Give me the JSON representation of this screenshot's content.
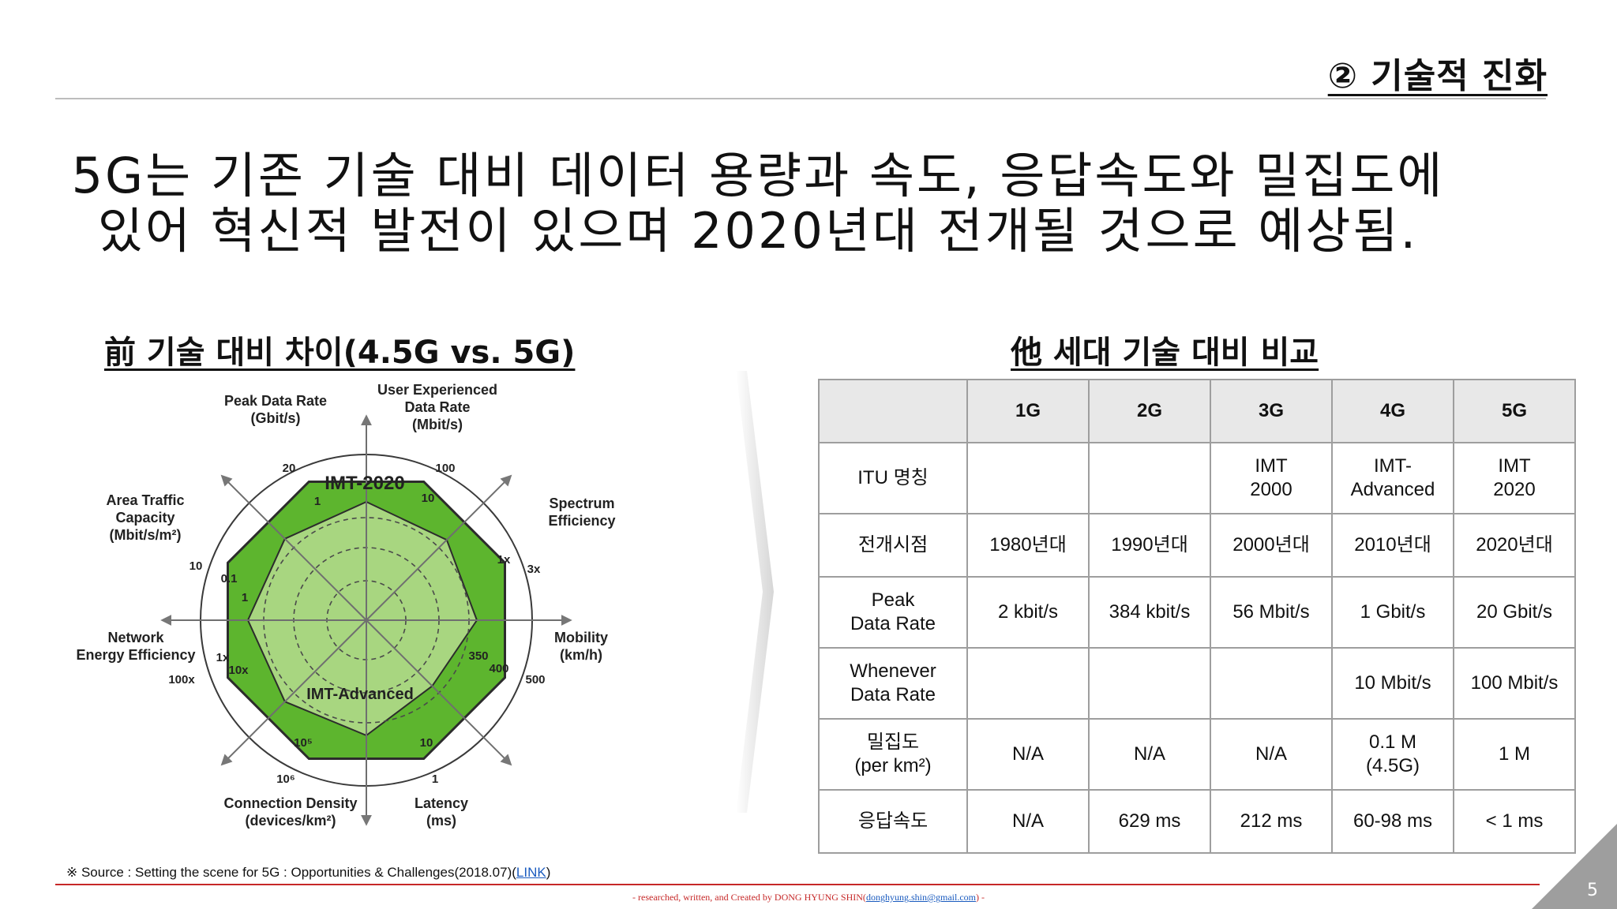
{
  "section_title": "② 기술적 진화",
  "headline": {
    "line1": "5G는 기존 기술 대비 데이터 용량과 속도, 응답속도와 밀집도에",
    "line2": "있어 혁신적 발전이 있으며 2020년대 전개될 것으로 예상됨."
  },
  "left_subtitle": "前 기술 대비 차이(4.5G vs. 5G)",
  "right_subtitle": "他 세대 기술 대비 비교",
  "radar": {
    "outer_label": "IMT-2020",
    "inner_label": "IMT-Advanced",
    "axes": [
      {
        "label_lines": [
          "Peak Data Rate",
          "(Gbit/s)"
        ],
        "outer_tick": "20",
        "inner_tick": "1"
      },
      {
        "label_lines": [
          "User Experienced",
          "Data Rate",
          "(Mbit/s)"
        ],
        "outer_tick": "100",
        "inner_tick": "10"
      },
      {
        "label_lines": [
          "Spectrum",
          "Efficiency"
        ],
        "outer_tick": "3x",
        "inner_tick": "1x"
      },
      {
        "label_lines": [
          "Mobility",
          "(km/h)"
        ],
        "outer_tick": "500",
        "inner_tick": "400",
        "extra_tick": "350"
      },
      {
        "label_lines": [
          "Latency",
          "(ms)"
        ],
        "outer_tick": "1",
        "inner_tick": "10"
      },
      {
        "label_lines": [
          "Connection Density",
          "(devices/km²)"
        ],
        "outer_tick": "10⁶",
        "inner_tick": "10⁵"
      },
      {
        "label_lines": [
          "Network",
          "Energy Efficiency"
        ],
        "outer_tick": "100x",
        "inner_tick": "1x",
        "extra_tick": "10x"
      },
      {
        "label_lines": [
          "Area Traffic",
          "Capacity",
          "(Mbit/s/m²)"
        ],
        "outer_tick": "10",
        "inner_tick": "0.1",
        "extra_tick": "1"
      }
    ],
    "colors": {
      "outer_fill": "#5db52e",
      "inner_fill": "#a8d680",
      "stroke": "#2c2c2c"
    }
  },
  "table": {
    "headers": [
      "",
      "1G",
      "2G",
      "3G",
      "4G",
      "5G"
    ],
    "rows": [
      {
        "label": [
          "ITU 명칭"
        ],
        "cells": [
          [
            ""
          ],
          [
            ""
          ],
          [
            "IMT",
            "2000"
          ],
          [
            "IMT-",
            "Advanced"
          ],
          [
            "IMT",
            "2020"
          ]
        ]
      },
      {
        "label": [
          "전개시점"
        ],
        "cells": [
          [
            "1980년대"
          ],
          [
            "1990년대"
          ],
          [
            "2000년대"
          ],
          [
            "2010년대"
          ],
          [
            "2020년대"
          ]
        ]
      },
      {
        "label": [
          "Peak",
          "Data Rate"
        ],
        "cells": [
          [
            "2 kbit/s"
          ],
          [
            "384 kbit/s"
          ],
          [
            "56 Mbit/s"
          ],
          [
            "1 Gbit/s"
          ],
          [
            "20 Gbit/s"
          ]
        ]
      },
      {
        "label": [
          "Whenever",
          "Data Rate"
        ],
        "cells": [
          [
            ""
          ],
          [
            ""
          ],
          [
            ""
          ],
          [
            "10 Mbit/s"
          ],
          [
            "100 Mbit/s"
          ]
        ]
      },
      {
        "label": [
          "밀집도",
          "(per km²)"
        ],
        "cells": [
          [
            "N/A"
          ],
          [
            "N/A"
          ],
          [
            "N/A"
          ],
          [
            "0.1 M",
            "(4.5G)"
          ],
          [
            "1 M"
          ]
        ]
      },
      {
        "label": [
          "응답속도"
        ],
        "cells": [
          [
            "N/A"
          ],
          [
            "629 ms"
          ],
          [
            "212 ms"
          ],
          [
            "60-98 ms"
          ],
          [
            "< 1 ms"
          ]
        ]
      }
    ]
  },
  "source": {
    "prefix": "※ Source : Setting the scene for 5G : Opportunities & Challenges(2018.07)(",
    "link": "LINK",
    "suffix": ")"
  },
  "footer": {
    "prefix": "- researched, written, and Created by DONG HYUNG SHIN(",
    "email": "donghyung.shin@gmail.com",
    "suffix": ") -"
  },
  "page_number": "5"
}
